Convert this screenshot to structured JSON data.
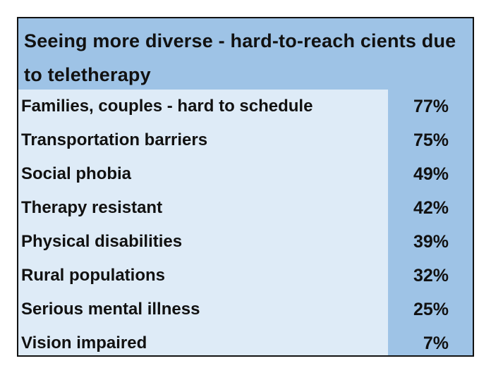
{
  "chart_data": {
    "type": "table",
    "title": "Seeing more diverse - hard-to-reach cients due to teletherapy",
    "rows": [
      {
        "label": "Families, couples - hard to schedule",
        "value": "77%"
      },
      {
        "label": "Transportation barriers",
        "value": "75%"
      },
      {
        "label": "Social phobia",
        "value": "49%"
      },
      {
        "label": "Therapy resistant",
        "value": "42%"
      },
      {
        "label": "Physical disabilities",
        "value": "39%"
      },
      {
        "label": "Rural populations",
        "value": "32%"
      },
      {
        "label": "Serious mental illness",
        "value": "25%"
      },
      {
        "label": "Vision impaired",
        "value": "7%"
      }
    ]
  },
  "colors": {
    "header_and_value_bg": "#9ec3e6",
    "label_bg": "#deebf7",
    "border": "#111111",
    "text": "#111111"
  }
}
